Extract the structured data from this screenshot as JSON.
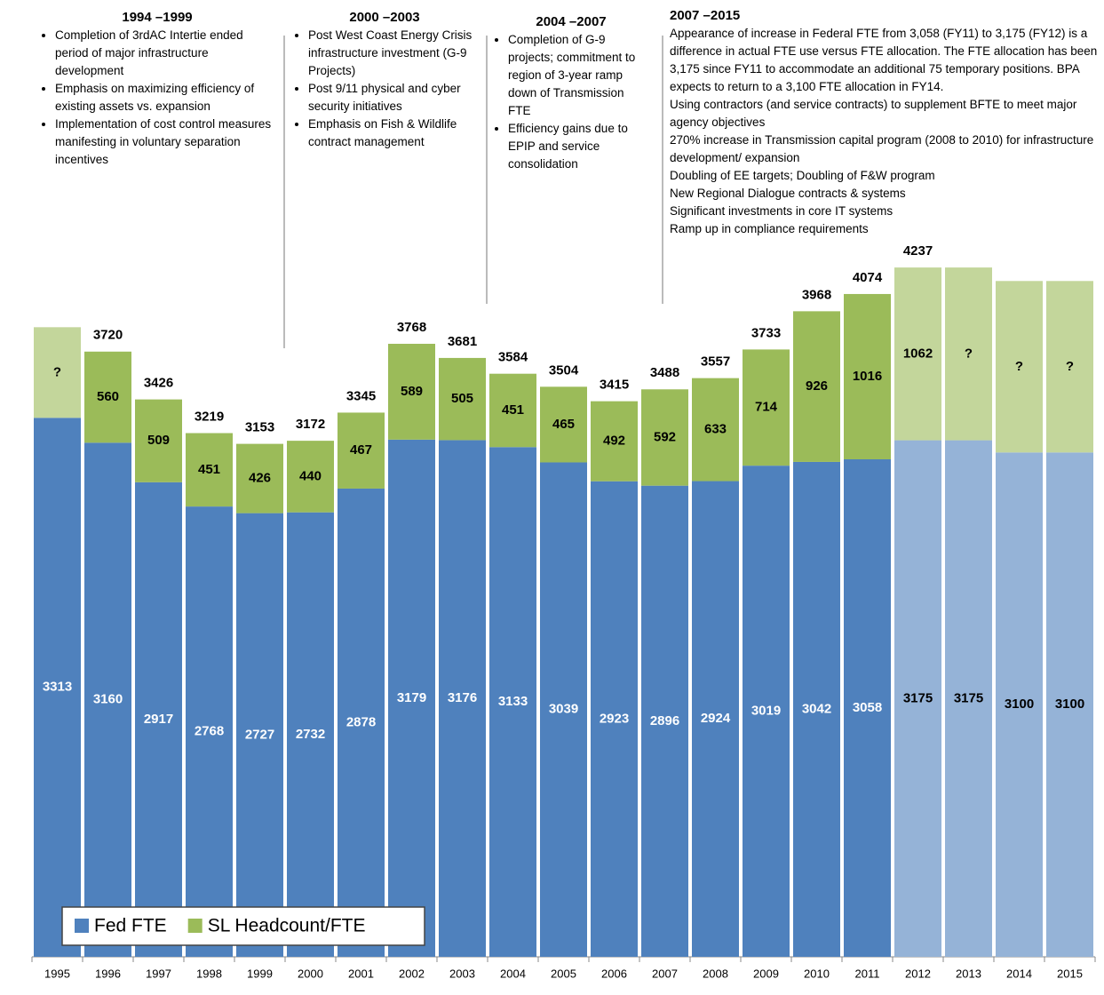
{
  "chart_data": {
    "type": "stacked_bar",
    "categories": [
      "1995",
      "1996",
      "1997",
      "1998",
      "1999",
      "2000",
      "2001",
      "2002",
      "2003",
      "2004",
      "2005",
      "2006",
      "2007",
      "2008",
      "2009",
      "2010",
      "2011",
      "2012",
      "2013",
      "2014",
      "2015"
    ],
    "series": [
      {
        "name": "Fed FTE",
        "color": "#4f81bd",
        "colors": [
          "#4f81bd",
          "#4f81bd",
          "#4f81bd",
          "#4f81bd",
          "#4f81bd",
          "#4f81bd",
          "#4f81bd",
          "#4f81bd",
          "#4f81bd",
          "#4f81bd",
          "#4f81bd",
          "#4f81bd",
          "#4f81bd",
          "#4f81bd",
          "#4f81bd",
          "#4f81bd",
          "#4f81bd",
          "#95b3d7",
          "#95b3d7",
          "#95b3d7",
          "#95b3d7"
        ],
        "label_colors": [
          "#ffffff",
          "#ffffff",
          "#ffffff",
          "#ffffff",
          "#ffffff",
          "#ffffff",
          "#ffffff",
          "#ffffff",
          "#ffffff",
          "#ffffff",
          "#ffffff",
          "#ffffff",
          "#ffffff",
          "#ffffff",
          "#ffffff",
          "#ffffff",
          "#ffffff",
          "#000000",
          "#000000",
          "#000000",
          "#000000"
        ],
        "values": [
          3313,
          3160,
          2917,
          2768,
          2727,
          2732,
          2878,
          3179,
          3176,
          3133,
          3039,
          2923,
          2896,
          2924,
          3019,
          3042,
          3058,
          3175,
          3175,
          3100,
          3100
        ]
      },
      {
        "name": "SL Headcount/FTE",
        "color": "#9bbb59",
        "colors": [
          "#c3d69b",
          "#9bbb59",
          "#9bbb59",
          "#9bbb59",
          "#9bbb59",
          "#9bbb59",
          "#9bbb59",
          "#9bbb59",
          "#9bbb59",
          "#9bbb59",
          "#9bbb59",
          "#9bbb59",
          "#9bbb59",
          "#9bbb59",
          "#9bbb59",
          "#9bbb59",
          "#9bbb59",
          "#c3d69b",
          "#c3d69b",
          "#c3d69b",
          "#c3d69b"
        ],
        "values": [
          557,
          560,
          509,
          451,
          426,
          440,
          467,
          589,
          505,
          451,
          465,
          492,
          592,
          633,
          714,
          926,
          1016,
          1062,
          1062,
          1054,
          1054
        ],
        "value_labels": [
          "?",
          "560",
          "509",
          "451",
          "426",
          "440",
          "467",
          "589",
          "505",
          "451",
          "465",
          "492",
          "592",
          "633",
          "714",
          "926",
          "1016",
          "1062",
          "?",
          "?",
          "?"
        ]
      }
    ],
    "totals": [
      null,
      3720,
      3426,
      3219,
      3153,
      3172,
      3345,
      3768,
      3681,
      3584,
      3504,
      3415,
      3488,
      3557,
      3733,
      3968,
      4074,
      4237,
      null,
      null,
      null
    ],
    "ylim": [
      0,
      4800
    ],
    "annotations": [
      {
        "title": "1994 –1999",
        "bullets": [
          "Completion of 3rdAC Intertie ended period of major infrastructure development",
          "Emphasis on maximizing efficiency of existing assets vs. expansion",
          "Implementation of cost control measures manifesting in voluntary separation incentives"
        ]
      },
      {
        "title": "2000 –2003",
        "bullets": [
          "Post West Coast Energy Crisis infrastructure investment (G-9 Projects)",
          "Post 9/11 physical and cyber security initiatives",
          "Emphasis on Fish & Wildlife contract management"
        ]
      },
      {
        "title": "2004 –2007",
        "bullets": [
          "Completion of G-9 projects; commitment to region of 3-year ramp down of Transmission FTE",
          "Efficiency gains due to EPIP and service consolidation"
        ]
      },
      {
        "title": "2007 –2015",
        "lines": [
          "Appearance of increase in Federal FTE from 3,058 (FY11) to 3,175 (FY12) is a difference in actual FTE use versus FTE allocation.  The FTE allocation has been 3,175 since FY11 to accommodate an additional 75 temporary positions. BPA expects to return to a 3,100 FTE allocation in FY14.",
          "Using contractors (and service contracts) to supplement BFTE to meet major agency objectives",
          "270% increase in Transmission capital program (2008 to 2010) for infrastructure development/ expansion",
          "Doubling of EE targets; Doubling of F&W program",
          "New Regional Dialogue contracts & systems",
          "Significant investments in core IT systems",
          "Ramp up in compliance requirements"
        ]
      }
    ]
  }
}
